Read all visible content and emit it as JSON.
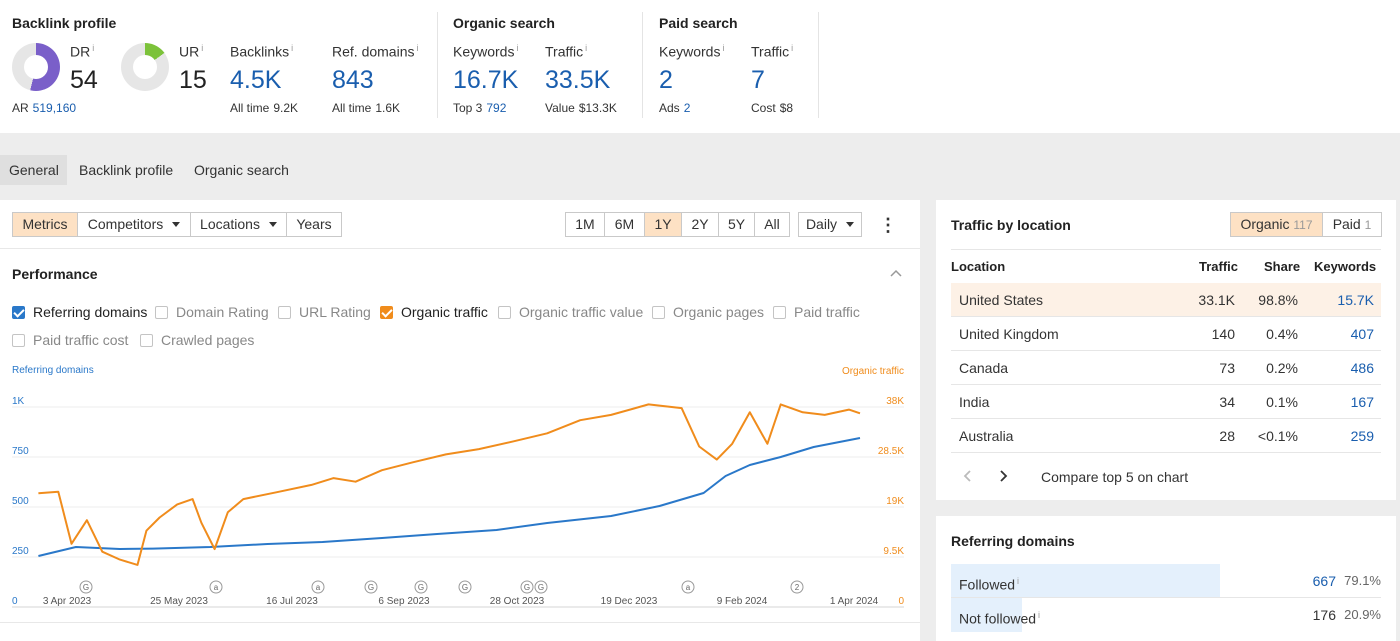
{
  "backlink_profile": {
    "title": "Backlink profile",
    "dr": {
      "label": "DR",
      "info": "i",
      "value": "54",
      "fill": 0.54,
      "color": "#7a5fc9"
    },
    "ur": {
      "label": "UR",
      "info": "i",
      "value": "15",
      "fill": 0.15,
      "color": "#7cc23a"
    },
    "ar": {
      "label": "AR",
      "value": "519,160"
    },
    "backlinks": {
      "label": "Backlinks",
      "info": "i",
      "value": "4.5K",
      "sub_label": "All time",
      "sub_value": "9.2K"
    },
    "ref_domains": {
      "label": "Ref. domains",
      "info": "i",
      "value": "843",
      "sub_label": "All time",
      "sub_value": "1.6K"
    }
  },
  "organic_search": {
    "title": "Organic search",
    "keywords": {
      "label": "Keywords",
      "info": "i",
      "value": "16.7K",
      "sub_label": "Top 3",
      "sub_value": "792"
    },
    "traffic": {
      "label": "Traffic",
      "info": "i",
      "value": "33.5K",
      "sub_label": "Value",
      "sub_value": "$13.3K"
    }
  },
  "paid_search": {
    "title": "Paid search",
    "keywords": {
      "label": "Keywords",
      "info": "i",
      "value": "2",
      "sub_label": "Ads",
      "sub_value": "2"
    },
    "traffic": {
      "label": "Traffic",
      "info": "i",
      "value": "7",
      "sub_label": "Cost",
      "sub_value": "$8"
    }
  },
  "tabs": [
    "General",
    "Backlink profile",
    "Organic search"
  ],
  "toolbar": {
    "metrics": "Metrics",
    "competitors": "Competitors",
    "locations": "Locations",
    "years": "Years",
    "ranges": [
      "1M",
      "6M",
      "1Y",
      "2Y",
      "5Y",
      "All"
    ],
    "active_range": "1Y",
    "interval": "Daily",
    "more": "⋮"
  },
  "performance": {
    "title": "Performance",
    "checkboxes": [
      {
        "label": "Referring domains",
        "checked": true
      },
      {
        "label": "Domain Rating",
        "checked": false
      },
      {
        "label": "URL Rating",
        "checked": false
      },
      {
        "label": "Organic traffic",
        "checked": true
      },
      {
        "label": "Organic traffic value",
        "checked": false
      },
      {
        "label": "Organic pages",
        "checked": false
      },
      {
        "label": "Paid traffic",
        "checked": false
      },
      {
        "label": "Paid traffic cost",
        "checked": false
      },
      {
        "label": "Crawled pages",
        "checked": false
      }
    ]
  },
  "chart_data": {
    "type": "line",
    "left_axis_label": "Referring domains",
    "right_axis_label": "Organic traffic",
    "left_ticks": [
      "1K",
      "750",
      "500",
      "250",
      "0"
    ],
    "right_ticks": [
      "38K",
      "28.5K",
      "19K",
      "9.5K",
      "0"
    ],
    "x_labels": [
      "3 Apr 2023",
      "25 May 2023",
      "16 Jul 2023",
      "6 Sep 2023",
      "28 Oct 2023",
      "19 Dec 2023",
      "9 Feb 2024",
      "1 Apr 2024"
    ],
    "annotations": [
      "G",
      "a",
      "a",
      "G",
      "G",
      "G",
      "G",
      "G",
      "a",
      "2"
    ],
    "series": [
      {
        "name": "Referring domains",
        "color": "#2a78c9",
        "points": [
          [
            "2023-04-03",
            255
          ],
          [
            "2023-04-20",
            300
          ],
          [
            "2023-05-10",
            290
          ],
          [
            "2023-05-25",
            292
          ],
          [
            "2023-06-20",
            300
          ],
          [
            "2023-07-16",
            315
          ],
          [
            "2023-08-10",
            325
          ],
          [
            "2023-09-06",
            345
          ],
          [
            "2023-10-01",
            365
          ],
          [
            "2023-10-28",
            385
          ],
          [
            "2023-11-20",
            420
          ],
          [
            "2023-12-19",
            455
          ],
          [
            "2024-01-10",
            505
          ],
          [
            "2024-01-30",
            570
          ],
          [
            "2024-02-09",
            655
          ],
          [
            "2024-02-20",
            710
          ],
          [
            "2024-03-05",
            750
          ],
          [
            "2024-03-20",
            800
          ],
          [
            "2024-04-10",
            845
          ]
        ]
      },
      {
        "name": "Organic traffic",
        "color": "#f08c1c",
        "points": [
          [
            "2023-04-03",
            21600
          ],
          [
            "2023-04-12",
            21900
          ],
          [
            "2023-04-18",
            12000
          ],
          [
            "2023-04-25",
            16500
          ],
          [
            "2023-05-02",
            10500
          ],
          [
            "2023-05-10",
            9000
          ],
          [
            "2023-05-18",
            8000
          ],
          [
            "2023-05-22",
            14500
          ],
          [
            "2023-05-28",
            17000
          ],
          [
            "2023-06-05",
            19500
          ],
          [
            "2023-06-12",
            20500
          ],
          [
            "2023-06-16",
            16000
          ],
          [
            "2023-06-22",
            11000
          ],
          [
            "2023-06-28",
            18000
          ],
          [
            "2023-07-05",
            20500
          ],
          [
            "2023-07-20",
            21800
          ],
          [
            "2023-08-05",
            23200
          ],
          [
            "2023-08-15",
            24500
          ],
          [
            "2023-08-25",
            23800
          ],
          [
            "2023-09-06",
            26000
          ],
          [
            "2023-09-20",
            27500
          ],
          [
            "2023-10-05",
            29000
          ],
          [
            "2023-10-20",
            30000
          ],
          [
            "2023-11-05",
            31500
          ],
          [
            "2023-11-20",
            33000
          ],
          [
            "2023-12-05",
            35500
          ],
          [
            "2023-12-19",
            36500
          ],
          [
            "2024-01-05",
            38500
          ],
          [
            "2024-01-20",
            37800
          ],
          [
            "2024-01-28",
            30500
          ],
          [
            "2024-02-05",
            28000
          ],
          [
            "2024-02-12",
            31000
          ],
          [
            "2024-02-20",
            37000
          ],
          [
            "2024-02-28",
            31000
          ],
          [
            "2024-03-05",
            38500
          ],
          [
            "2024-03-15",
            37000
          ],
          [
            "2024-03-25",
            36500
          ],
          [
            "2024-04-05",
            37500
          ],
          [
            "2024-04-10",
            36800
          ]
        ]
      }
    ],
    "y_left_range": [
      0,
      1000
    ],
    "y_right_range": [
      0,
      38000
    ],
    "x_range": [
      "2023-03-22",
      "2024-04-30"
    ],
    "grid": true
  },
  "traffic_by_location": {
    "title": "Traffic by location",
    "toggle": {
      "organic_label": "Organic",
      "organic_count": "117",
      "paid_label": "Paid",
      "paid_count": "1"
    },
    "headers": {
      "location": "Location",
      "traffic": "Traffic",
      "share": "Share",
      "keywords": "Keywords"
    },
    "rows": [
      {
        "location": "United States",
        "traffic": "33.1K",
        "share": "98.8%",
        "keywords": "15.7K"
      },
      {
        "location": "United Kingdom",
        "traffic": "140",
        "share": "0.4%",
        "keywords": "407"
      },
      {
        "location": "Canada",
        "traffic": "73",
        "share": "0.2%",
        "keywords": "486"
      },
      {
        "location": "India",
        "traffic": "34",
        "share": "0.1%",
        "keywords": "167"
      },
      {
        "location": "Australia",
        "traffic": "28",
        "share": "<0.1%",
        "keywords": "259"
      }
    ],
    "compare_label": "Compare top 5 on chart"
  },
  "referring_domains": {
    "title": "Referring domains",
    "rows": [
      {
        "label": "Followed",
        "info": "i",
        "value": "667",
        "pct": "79.1%",
        "fill": 0.791
      },
      {
        "label": "Not followed",
        "info": "i",
        "value": "176",
        "pct": "20.9%",
        "fill": 0.209
      }
    ]
  }
}
